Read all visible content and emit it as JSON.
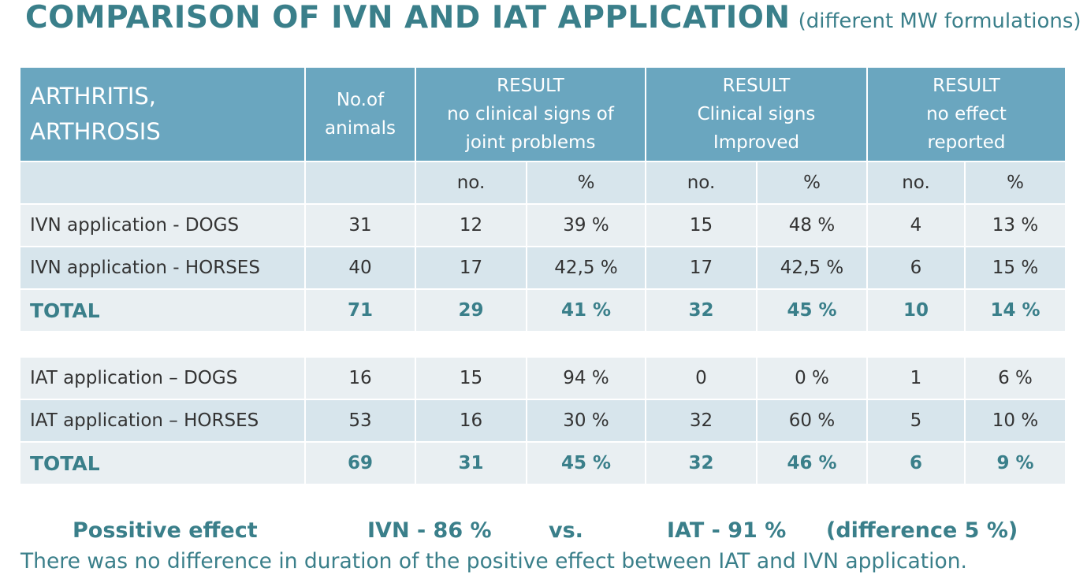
{
  "title": {
    "main": "COMPARISON OF IVN AND IAT APPLICATION",
    "sub": "(different MW formulations)"
  },
  "table": {
    "header": {
      "category": [
        "ARTHRITIS,",
        "ARTHROSIS"
      ],
      "animals": [
        "No.of",
        "animals"
      ],
      "result1": [
        "RESULT",
        "no clinical signs of",
        "joint problems"
      ],
      "result2": [
        "RESULT",
        "Clinical signs",
        "Improved"
      ],
      "result3": [
        "RESULT",
        "no effect",
        "reported"
      ]
    },
    "subheader": {
      "no": "no.",
      "pct": "%"
    },
    "ivn_rows": [
      {
        "label": "IVN application - DOGS",
        "animals": "31",
        "r1_no": "12",
        "r1_pct": "39 %",
        "r2_no": "15",
        "r2_pct": "48 %",
        "r3_no": "4",
        "r3_pct": "13 %"
      },
      {
        "label": "IVN application - HORSES",
        "animals": "40",
        "r1_no": "17",
        "r1_pct": "42,5 %",
        "r2_no": "17",
        "r2_pct": "42,5 %",
        "r3_no": "6",
        "r3_pct": "15 %"
      }
    ],
    "ivn_total": {
      "label": "TOTAL",
      "animals": "71",
      "r1_no": "29",
      "r1_pct": "41 %",
      "r2_no": "32",
      "r2_pct": "45 %",
      "r3_no": "10",
      "r3_pct": "14 %"
    },
    "iat_rows": [
      {
        "label": "IAT application – DOGS",
        "animals": "16",
        "r1_no": "15",
        "r1_pct": "94 %",
        "r2_no": "0",
        "r2_pct": "0 %",
        "r3_no": "1",
        "r3_pct": "6 %"
      },
      {
        "label": "IAT application – HORSES",
        "animals": "53",
        "r1_no": "16",
        "r1_pct": "30 %",
        "r2_no": "32",
        "r2_pct": "60  %",
        "r3_no": "5",
        "r3_pct": "10 %"
      }
    ],
    "iat_total": {
      "label": "TOTAL",
      "animals": "69",
      "r1_no": "31",
      "r1_pct": "45 %",
      "r2_no": "32",
      "r2_pct": "46 %",
      "r3_no": "6",
      "r3_pct": "9 %"
    }
  },
  "summary": {
    "label": "Possitive effect",
    "ivn": "IVN - 86 %",
    "vs": "vs.",
    "iat": "IAT - 91 %",
    "difference": "(difference 5 %)"
  },
  "note": "There was no difference in duration of the positive effect between IAT and IVN application."
}
